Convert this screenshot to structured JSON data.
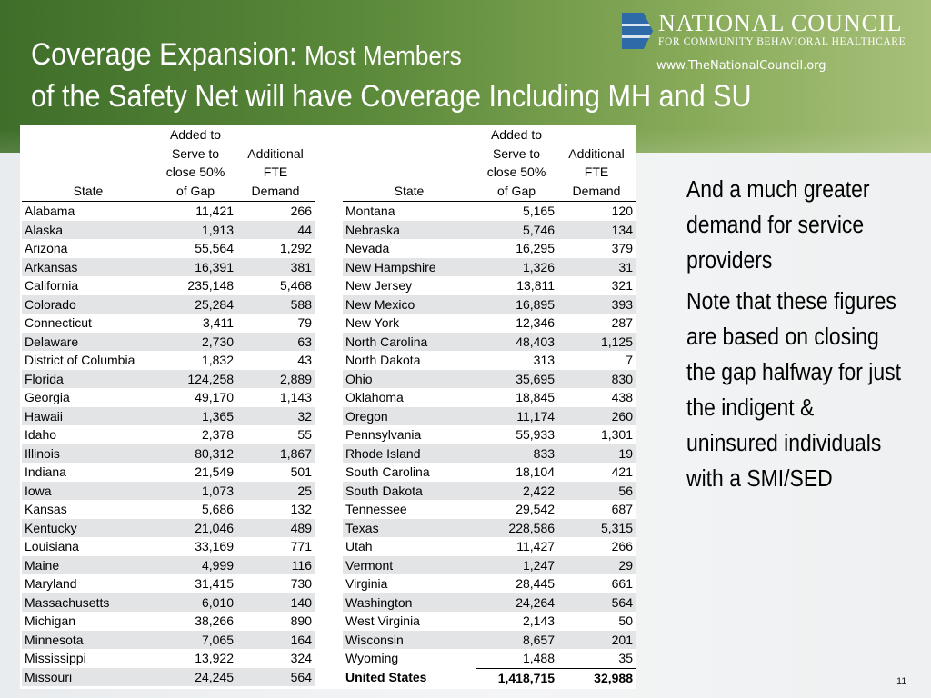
{
  "slide": {
    "title_main": "Coverage Expansion:",
    "title_sub1": "Most Members",
    "title_line2": "of the Safety Net will have Coverage Including MH and SU",
    "number": "11"
  },
  "logo": {
    "name": "NATIONAL COUNCIL",
    "subtitle": "FOR COMMUNITY BEHAVIORAL HEALTHCARE",
    "url": "www.TheNationalCouncil.org",
    "color": "#2f6aa8"
  },
  "colors": {
    "banner_green": "#5b8a3a",
    "row_shade": "#e3e4e6"
  },
  "table": {
    "headers": {
      "state": "State",
      "added_l1": "Added to",
      "added_l2": "Serve to",
      "added_l3": "close 50%",
      "added_l4": "of Gap",
      "fte_l1": "Additional",
      "fte_l2": "FTE",
      "fte_l3": "Demand"
    },
    "left_rows": [
      [
        "Alabama",
        "11,421",
        "266"
      ],
      [
        "Alaska",
        "1,913",
        "44"
      ],
      [
        "Arizona",
        "55,564",
        "1,292"
      ],
      [
        "Arkansas",
        "16,391",
        "381"
      ],
      [
        "California",
        "235,148",
        "5,468"
      ],
      [
        "Colorado",
        "25,284",
        "588"
      ],
      [
        "Connecticut",
        "3,411",
        "79"
      ],
      [
        "Delaware",
        "2,730",
        "63"
      ],
      [
        "District of Columbia",
        "1,832",
        "43"
      ],
      [
        "Florida",
        "124,258",
        "2,889"
      ],
      [
        "Georgia",
        "49,170",
        "1,143"
      ],
      [
        "Hawaii",
        "1,365",
        "32"
      ],
      [
        "Idaho",
        "2,378",
        "55"
      ],
      [
        "Illinois",
        "80,312",
        "1,867"
      ],
      [
        "Indiana",
        "21,549",
        "501"
      ],
      [
        "Iowa",
        "1,073",
        "25"
      ],
      [
        "Kansas",
        "5,686",
        "132"
      ],
      [
        "Kentucky",
        "21,046",
        "489"
      ],
      [
        "Louisiana",
        "33,169",
        "771"
      ],
      [
        "Maine",
        "4,999",
        "116"
      ],
      [
        "Maryland",
        "31,415",
        "730"
      ],
      [
        "Massachusetts",
        "6,010",
        "140"
      ],
      [
        "Michigan",
        "38,266",
        "890"
      ],
      [
        "Minnesota",
        "7,065",
        "164"
      ],
      [
        "Mississippi",
        "13,922",
        "324"
      ],
      [
        "Missouri",
        "24,245",
        "564"
      ]
    ],
    "right_rows": [
      [
        "Montana",
        "5,165",
        "120"
      ],
      [
        "Nebraska",
        "5,746",
        "134"
      ],
      [
        "Nevada",
        "16,295",
        "379"
      ],
      [
        "New Hampshire",
        "1,326",
        "31"
      ],
      [
        "New Jersey",
        "13,811",
        "321"
      ],
      [
        "New Mexico",
        "16,895",
        "393"
      ],
      [
        "New York",
        "12,346",
        "287"
      ],
      [
        "North Carolina",
        "48,403",
        "1,125"
      ],
      [
        "North Dakota",
        "313",
        "7"
      ],
      [
        "Ohio",
        "35,695",
        "830"
      ],
      [
        "Oklahoma",
        "18,845",
        "438"
      ],
      [
        "Oregon",
        "11,174",
        "260"
      ],
      [
        "Pennsylvania",
        "55,933",
        "1,301"
      ],
      [
        "Rhode Island",
        "833",
        "19"
      ],
      [
        "South Carolina",
        "18,104",
        "421"
      ],
      [
        "South Dakota",
        "2,422",
        "56"
      ],
      [
        "Tennessee",
        "29,542",
        "687"
      ],
      [
        "Texas",
        "228,586",
        "5,315"
      ],
      [
        "Utah",
        "11,427",
        "266"
      ],
      [
        "Vermont",
        "1,247",
        "29"
      ],
      [
        "Virginia",
        "28,445",
        "661"
      ],
      [
        "Washington",
        "24,264",
        "564"
      ],
      [
        "West Virginia",
        "2,143",
        "50"
      ],
      [
        "Wisconsin",
        "8,657",
        "201"
      ],
      [
        "Wyoming",
        "1,488",
        "35"
      ]
    ],
    "total_row": [
      "United States",
      "1,418,715",
      "32,988"
    ]
  },
  "notes": [
    "And a much greater demand for service providers",
    "Note that these figures are based on closing the gap halfway for just the indigent & uninsured individuals with a SMI/SED"
  ]
}
